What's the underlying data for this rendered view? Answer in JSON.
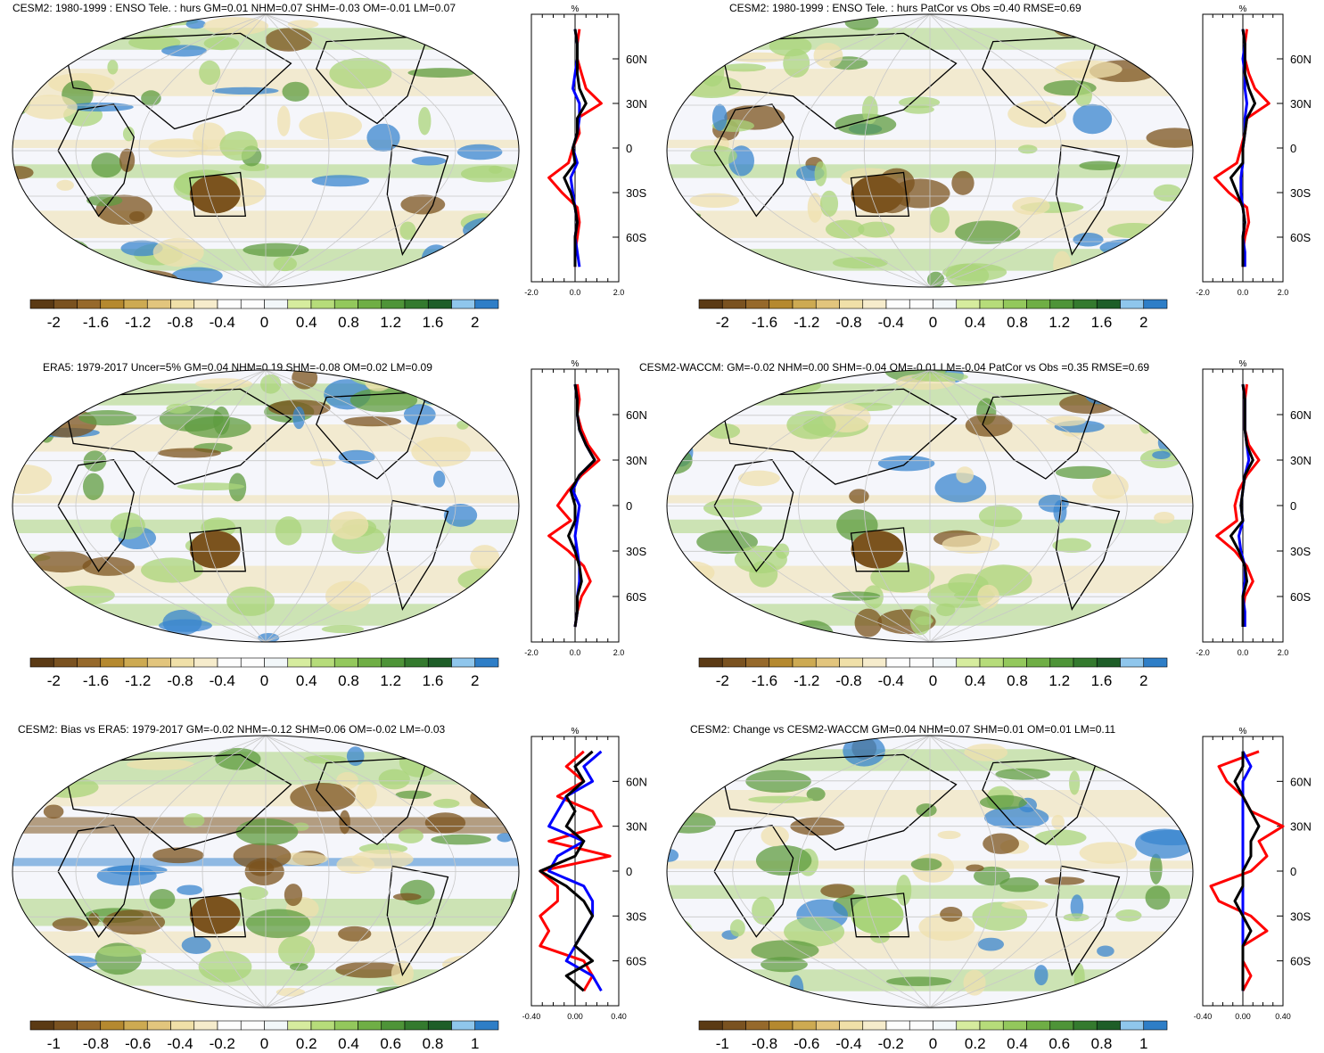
{
  "colorbar": {
    "colors": [
      "#5b3a14",
      "#7a5220",
      "#96692b",
      "#b5892f",
      "#cdaa52",
      "#e2c57d",
      "#f0e0a8",
      "#f6eccc",
      "#fdfdfd",
      "#f4f8fb",
      "#d6ec9e",
      "#b6dc7a",
      "#93c85c",
      "#6fae45",
      "#4e9438",
      "#347a2e",
      "#1e5e28",
      "#8fc6ec",
      "#2e7ec7"
    ],
    "map_palette": {
      "water": "#f5f6fb",
      "green": "#a9d47a",
      "dark_green": "#5f9c40",
      "tan": "#efe0ad",
      "brown": "#7b531e",
      "blue": "#3a86cf",
      "coast": "#000000",
      "grid": "#c8c8c8"
    },
    "profile_colors": {
      "red": "#ff0000",
      "blue": "#0000ff",
      "black": "#000000"
    }
  },
  "profile_lat_labels": [
    "60N",
    "30N",
    "0",
    "30S",
    "60S"
  ],
  "profile_unit": "%",
  "panels": [
    {
      "title": "CESM2: 1980-1999 : ENSO Tele. : hurs GM=0.01 NHM=0.07 SHM=-0.03 OM=-0.01 LM=0.07",
      "cbar_labels": [
        "-2",
        "-1.6",
        "-1.2",
        "-0.8",
        "-0.4",
        "0",
        "0.4",
        "0.8",
        "1.2",
        "1.6",
        "2"
      ],
      "prof_xlabels": [
        "-2.0",
        "0.0",
        "2.0"
      ],
      "prof_xlim": [
        -2,
        2
      ]
    },
    {
      "title": "CESM2: 1980-1999 : ENSO Tele. : hurs PatCor vs Obs =0.40 RMSE=0.69",
      "cbar_labels": [
        "-2",
        "-1.6",
        "-1.2",
        "-0.8",
        "-0.4",
        "0",
        "0.4",
        "0.8",
        "1.2",
        "1.6",
        "2"
      ],
      "prof_xlabels": [
        "-2.0",
        "0.0",
        "2.0"
      ],
      "prof_xlim": [
        -2,
        2
      ]
    },
    {
      "title": "ERA5: 1979-2017 Uncer=5% GM=0.04 NHM=0.19 SHM=-0.08 OM=0.02 LM=0.09",
      "cbar_labels": [
        "-2",
        "-1.6",
        "-1.2",
        "-0.8",
        "-0.4",
        "0",
        "0.4",
        "0.8",
        "1.2",
        "1.6",
        "2"
      ],
      "prof_xlabels": [
        "-2.0",
        "0.0",
        "2.0"
      ],
      "prof_xlim": [
        -2,
        2
      ]
    },
    {
      "title": "CESM2-WACCM: GM=-0.02 NHM=0.00 SHM=-0.04 OM=-0.01 LM=-0.04 PatCor vs Obs =0.35 RMSE=0.69",
      "cbar_labels": [
        "-2",
        "-1.6",
        "-1.2",
        "-0.8",
        "-0.4",
        "0",
        "0.4",
        "0.8",
        "1.2",
        "1.6",
        "2"
      ],
      "prof_xlabels": [
        "-2.0",
        "0.0",
        "2.0"
      ],
      "prof_xlim": [
        -2,
        2
      ]
    },
    {
      "title": "CESM2: Bias vs ERA5: 1979-2017 GM=-0.02 NHM=-0.12 SHM=0.06 OM=-0.02 LM=-0.03",
      "cbar_labels": [
        "-1",
        "-0.8",
        "-0.6",
        "-0.4",
        "-0.2",
        "0",
        "0.2",
        "0.4",
        "0.6",
        "0.8",
        "1"
      ],
      "prof_xlabels": [
        "-0.40",
        "0.00",
        "0.40"
      ],
      "prof_xlim": [
        -0.5,
        0.5
      ]
    },
    {
      "title": "CESM2: Change vs CESM2-WACCM GM=0.04 NHM=0.07 SHM=0.01 OM=0.01 LM=0.11",
      "cbar_labels": [
        "-1",
        "-0.8",
        "-0.6",
        "-0.4",
        "-0.2",
        "0",
        "0.2",
        "0.4",
        "0.6",
        "0.8",
        "1"
      ],
      "prof_xlabels": [
        "-0.40",
        "0.00",
        "0.40"
      ],
      "prof_xlim": [
        -0.5,
        0.5
      ]
    }
  ],
  "chart_data": [
    {
      "type": "heatmap",
      "title": "CESM2: 1980-1999 : ENSO Tele. : hurs GM=0.01 NHM=0.07 SHM=-0.03 OM=-0.01 LM=0.07",
      "unit": "%",
      "colorbar_ticks": [
        -2,
        -1.6,
        -1.2,
        -0.8,
        -0.4,
        0,
        0.4,
        0.8,
        1.2,
        1.6,
        2
      ],
      "zonal_profile": {
        "lat": [
          80,
          70,
          60,
          50,
          40,
          30,
          20,
          10,
          0,
          -10,
          -20,
          -30,
          -40,
          -50,
          -60,
          -70,
          -80
        ],
        "series": [
          {
            "color": "red",
            "values": [
              0.2,
              0.1,
              0.1,
              0.3,
              0.5,
              1.2,
              0.1,
              0.2,
              -0.1,
              -0.3,
              -1.2,
              -0.6,
              0.1,
              0.2,
              0.1,
              0,
              0
            ]
          },
          {
            "color": "blue",
            "values": [
              0,
              0.1,
              0.1,
              0,
              -0.1,
              0.2,
              0.2,
              0.1,
              -0.1,
              0.1,
              -0.2,
              -0.1,
              0,
              0.1,
              0,
              0.1,
              0.2
            ]
          },
          {
            "color": "black",
            "values": [
              0,
              0.1,
              0.1,
              0.1,
              0.2,
              0.5,
              0.1,
              0.1,
              -0.1,
              0,
              -0.5,
              -0.2,
              0,
              0.1,
              0,
              0,
              0
            ]
          }
        ],
        "xlim": [
          -2,
          2
        ]
      }
    },
    {
      "type": "heatmap",
      "title": "CESM2: 1980-1999 : ENSO Tele. : hurs PatCor vs Obs =0.40 RMSE=0.69",
      "unit": "%",
      "colorbar_ticks": [
        -2,
        -1.6,
        -1.2,
        -0.8,
        -0.4,
        0,
        0.4,
        0.8,
        1.2,
        1.6,
        2
      ],
      "zonal_profile": {
        "lat": [
          80,
          70,
          60,
          50,
          40,
          30,
          20,
          10,
          0,
          -10,
          -20,
          -30,
          -40,
          -50,
          -60,
          -70,
          -80
        ],
        "series": [
          {
            "color": "red",
            "values": [
              0.2,
              0.1,
              0.1,
              0.3,
              0.6,
              1.3,
              0.2,
              0.1,
              -0.1,
              -0.3,
              -1.4,
              -0.7,
              0.2,
              0.3,
              0.1,
              0,
              0
            ]
          },
          {
            "color": "blue",
            "values": [
              0,
              0.1,
              0,
              0.1,
              0.1,
              0.2,
              0.1,
              0.1,
              0,
              0,
              -0.1,
              -0.1,
              0,
              0.1,
              0,
              0.1,
              0.1
            ]
          },
          {
            "color": "black",
            "values": [
              0,
              0.1,
              0.1,
              0.1,
              0.3,
              0.6,
              0.2,
              0.1,
              0,
              0,
              -0.6,
              -0.3,
              0,
              0.1,
              0,
              0,
              0
            ]
          }
        ],
        "xlim": [
          -2,
          2
        ]
      }
    },
    {
      "type": "heatmap",
      "title": "ERA5: 1979-2017 Uncer=5% GM=0.04 NHM=0.19 SHM=-0.08 OM=0.02 LM=0.09",
      "unit": "%",
      "colorbar_ticks": [
        -2,
        -1.6,
        -1.2,
        -0.8,
        -0.4,
        0,
        0.4,
        0.8,
        1.2,
        1.6,
        2
      ],
      "zonal_profile": {
        "lat": [
          80,
          70,
          60,
          50,
          40,
          30,
          20,
          10,
          0,
          -10,
          -20,
          -30,
          -40,
          -50,
          -60,
          -70,
          -80
        ],
        "series": [
          {
            "color": "red",
            "values": [
              0.1,
              0.2,
              0.1,
              0.3,
              0.6,
              1.1,
              0.3,
              -0.3,
              -0.8,
              -0.2,
              -1.2,
              -0.3,
              0.4,
              0.7,
              0.3,
              0.1,
              0
            ]
          },
          {
            "color": "blue",
            "values": [
              0,
              0.1,
              0.1,
              0.2,
              0.5,
              0.9,
              0.2,
              -0.1,
              0.2,
              0.1,
              0,
              0.1,
              0.2,
              0.2,
              0.1,
              0.1,
              0
            ]
          },
          {
            "color": "black",
            "values": [
              0,
              0.1,
              0.1,
              0.2,
              0.5,
              0.9,
              0.2,
              -0.2,
              0,
              0,
              -0.3,
              0,
              0.2,
              0.3,
              0.1,
              0.1,
              0
            ]
          }
        ],
        "xlim": [
          -2,
          2
        ]
      }
    },
    {
      "type": "heatmap",
      "title": "CESM2-WACCM: GM=-0.02 NHM=0.00 SHM=-0.04 OM=-0.01 LM=-0.04 PatCor vs Obs =0.35 RMSE=0.69",
      "unit": "%",
      "colorbar_ticks": [
        -2,
        -1.6,
        -1.2,
        -0.8,
        -0.4,
        0,
        0.4,
        0.8,
        1.2,
        1.6,
        2
      ],
      "zonal_profile": {
        "lat": [
          80,
          70,
          60,
          50,
          40,
          30,
          20,
          10,
          0,
          -10,
          -20,
          -30,
          -40,
          -50,
          -60,
          -70,
          -80
        ],
        "series": [
          {
            "color": "red",
            "values": [
              0.2,
              0.1,
              0.1,
              0.1,
              0.3,
              0.8,
              0.2,
              -0.2,
              -0.4,
              -0.3,
              -1.3,
              -0.4,
              0.2,
              0.5,
              0.1,
              0,
              0
            ]
          },
          {
            "color": "blue",
            "values": [
              0,
              0.1,
              0.1,
              0.1,
              0.2,
              0.3,
              0.1,
              0,
              -0.1,
              0,
              -0.2,
              -0.1,
              0.1,
              0.1,
              0,
              0.1,
              0.1
            ]
          },
          {
            "color": "black",
            "values": [
              0,
              0.1,
              0.1,
              0.1,
              0.2,
              0.5,
              0.1,
              0,
              -0.1,
              0,
              -0.6,
              -0.2,
              0.1,
              0.2,
              0,
              0,
              0
            ]
          }
        ],
        "xlim": [
          -2,
          2
        ]
      }
    },
    {
      "type": "heatmap",
      "title": "CESM2: Bias vs ERA5: 1979-2017 GM=-0.02 NHM=-0.12 SHM=0.06 OM=-0.02 LM=-0.03",
      "unit": "%",
      "colorbar_ticks": [
        -1,
        -0.8,
        -0.6,
        -0.4,
        -0.2,
        0,
        0.2,
        0.4,
        0.6,
        0.8,
        1
      ],
      "zonal_profile": {
        "lat": [
          80,
          70,
          60,
          50,
          40,
          30,
          20,
          10,
          0,
          -10,
          -20,
          -30,
          -40,
          -50,
          -60,
          -70,
          -80
        ],
        "series": [
          {
            "color": "red",
            "values": [
              0.1,
              -0.1,
              0.1,
              -0.2,
              0.2,
              0.3,
              -0.3,
              0.4,
              -0.4,
              -0.2,
              -0.2,
              -0.4,
              -0.3,
              -0.4,
              0.1,
              0.2,
              0.1
            ]
          },
          {
            "color": "blue",
            "values": [
              0.3,
              0.1,
              0.2,
              -0.1,
              -0.2,
              -0.3,
              0.1,
              -0.2,
              -0.3,
              0.1,
              0.2,
              0.2,
              0.1,
              0,
              -0.1,
              0.2,
              0.3
            ]
          },
          {
            "color": "black",
            "values": [
              0.2,
              0,
              0.1,
              -0.1,
              0,
              -0.1,
              0.1,
              0,
              -0.4,
              -0.1,
              0.1,
              0.2,
              0.1,
              0,
              0.2,
              -0.1,
              0.1
            ]
          }
        ],
        "xlim": [
          -0.5,
          0.5
        ]
      }
    },
    {
      "type": "heatmap",
      "title": "CESM2: Change vs CESM2-WACCM GM=0.04 NHM=0.07 SHM=0.01 OM=0.01 LM=0.11",
      "unit": "%",
      "colorbar_ticks": [
        -1,
        -0.8,
        -0.6,
        -0.4,
        -0.2,
        0,
        0.2,
        0.4,
        0.6,
        0.8,
        1
      ],
      "zonal_profile": {
        "lat": [
          80,
          70,
          60,
          50,
          40,
          30,
          20,
          10,
          0,
          -10,
          -20,
          -30,
          -40,
          -50,
          -60,
          -70,
          -80
        ],
        "series": [
          {
            "color": "red",
            "values": [
              0.2,
              -0.3,
              -0.2,
              0,
              0.1,
              0.5,
              0.2,
              0.3,
              0.1,
              -0.4,
              -0.3,
              0.1,
              0.3,
              0,
              0,
              0.1,
              0
            ]
          },
          {
            "color": "blue",
            "values": [
              0,
              0.1,
              0,
              0,
              0,
              0,
              0,
              0,
              0,
              0,
              0,
              0,
              0,
              0,
              0,
              0,
              0
            ]
          },
          {
            "color": "black",
            "values": [
              0,
              0,
              -0.1,
              0,
              0.1,
              0.2,
              0.1,
              0.1,
              0,
              0,
              -0.1,
              0,
              0.1,
              0,
              0,
              0,
              0
            ]
          }
        ],
        "xlim": [
          -0.5,
          0.5
        ]
      }
    }
  ]
}
